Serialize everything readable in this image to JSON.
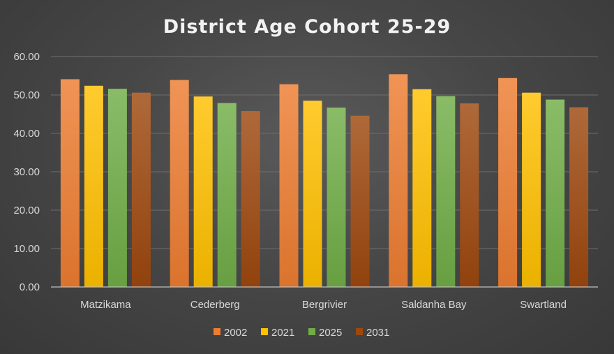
{
  "chart_data": {
    "type": "bar",
    "title": "District Age Cohort 25-29",
    "xlabel": "",
    "ylabel": "",
    "categories": [
      "Matzikama",
      "Cederberg",
      "Bergrivier",
      "Saldanha Bay",
      "Swartland"
    ],
    "series": [
      {
        "name": "2002",
        "values": [
          54.1,
          53.9,
          52.8,
          55.4,
          54.4
        ],
        "color": "#ED7D31"
      },
      {
        "name": "2021",
        "values": [
          52.4,
          49.6,
          48.5,
          51.5,
          50.6
        ],
        "color": "#FFC000"
      },
      {
        "name": "2025",
        "values": [
          51.6,
          47.9,
          46.7,
          49.7,
          48.8
        ],
        "color": "#70AD47"
      },
      {
        "name": "2031",
        "values": [
          50.6,
          45.8,
          44.6,
          47.8,
          46.8
        ],
        "color": "#9E480E"
      }
    ],
    "ylim": [
      0,
      60
    ],
    "yticks": [
      "0.00",
      "10.00",
      "20.00",
      "30.00",
      "40.00",
      "50.00",
      "60.00"
    ],
    "grid": true,
    "legend_position": "bottom"
  }
}
